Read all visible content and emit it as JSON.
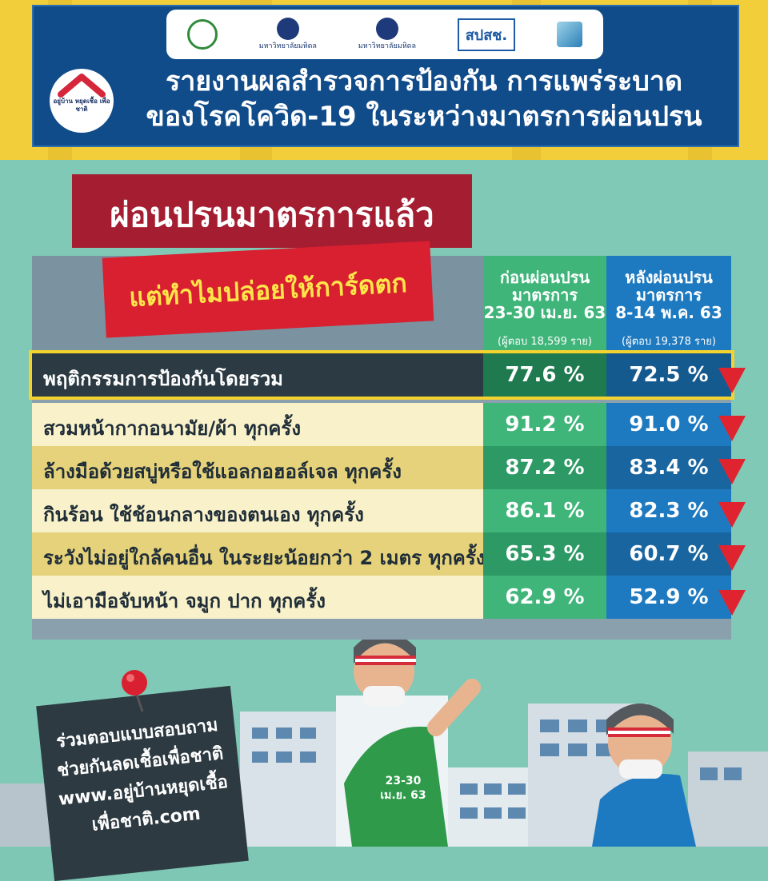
{
  "header": {
    "logos": [
      {
        "name": "ministry-of-public-health-logo",
        "text": ""
      },
      {
        "name": "mahidol-siriraj-logo",
        "text": "มหาวิทยาลัยมหิดล"
      },
      {
        "name": "mahidol-ramathibodi-logo",
        "text": "มหาวิทยาลัยมหิดล"
      },
      {
        "name": "nhso-logo",
        "text": "สปสช."
      },
      {
        "name": "nso-logo",
        "text": ""
      }
    ],
    "badge_text": "อยู่บ้าน หยุดเชื้อ เพื่อชาติ",
    "title_line1": "รายงานผลสำรวจการป้องกัน การแพร่ระบาด",
    "title_line2": "ของโรคโควิด-19 ในระหว่างมาตรการผ่อนปรน"
  },
  "banner": {
    "title": "ผ่อนปรนมาตรการแล้ว",
    "subtitle": "แต่ทำไมปล่อยให้การ์ดตก"
  },
  "columns": {
    "before": {
      "line1": "ก่อนผ่อนปรน",
      "line2": "มาตรการ",
      "line3": "23-30 เม.ย. 63",
      "note": "(ผู้ตอบ 18,599 ราย)"
    },
    "after": {
      "line1": "หลังผ่อนปรน",
      "line2": "มาตรการ",
      "line3": "8-14 พ.ค. 63",
      "note": "(ผู้ตอบ 19,378 ราย)"
    }
  },
  "rows": [
    {
      "label": "พฤติกรรมการป้องกันโดยรวม",
      "before": "77.6 %",
      "after": "72.5 %"
    },
    {
      "label": "สวมหน้ากากอนามัย/ผ้า ทุกครั้ง",
      "before": "91.2 %",
      "after": "91.0 %"
    },
    {
      "label": "ล้างมือด้วยสบู่หรือใช้แอลกอฮอล์เจล ทุกครั้ง",
      "before": "87.2 %",
      "after": "83.4 %"
    },
    {
      "label": "กินร้อน ใช้ช้อนกลางของตนเอง ทุกครั้ง",
      "before": "86.1 %",
      "after": "82.3 %"
    },
    {
      "label": "ระวังไม่อยู่ใกล้คนอื่น ในระยะน้อยกว่า 2 เมตร ทุกครั้ง",
      "before": "65.3 %",
      "after": "60.7 %"
    },
    {
      "label": "ไม่เอามือจับหน้า จมูก ปาก ทุกครั้ง",
      "before": "62.9 %",
      "after": "52.9 %"
    }
  ],
  "callout": {
    "line1": "ร่วมตอบแบบสอบถาม",
    "line2": "ช่วยกันลดเชื้อเพื่อชาติ",
    "line3": "www.อยู่บ้านหยุดเชื้อ",
    "line4": "เพื่อชาติ.com"
  },
  "figure_label": {
    "line1": "23-30",
    "line2": "เม.ย. 63"
  },
  "colors": {
    "navy": "#114c8a",
    "yellow": "#f2cf3a",
    "teal": "#80c9b6",
    "green": "#3fb57a",
    "blue": "#1e7ac0",
    "red": "#d82030",
    "down_arrow": "#e0242f"
  }
}
